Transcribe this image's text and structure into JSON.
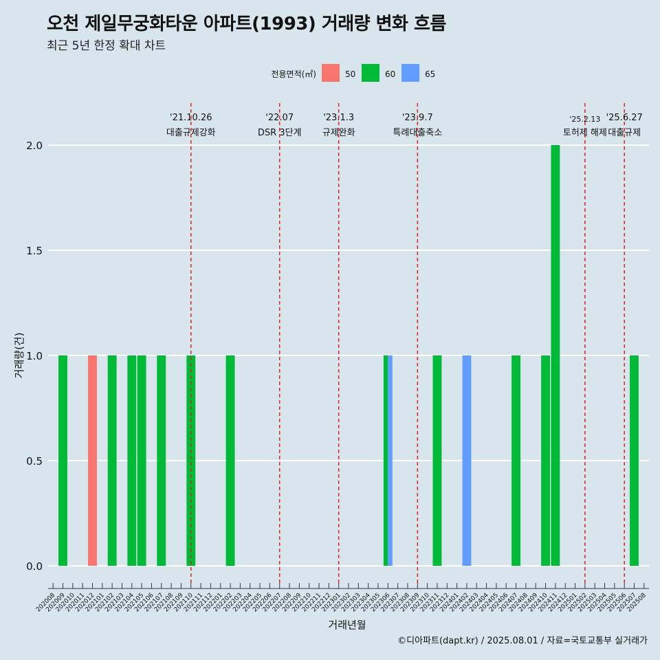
{
  "title": "오천 제일무궁화타운 아파트(1993) 거래량 변화 흐름",
  "subtitle": "최근 5년 한정 확대 차트",
  "caption": "©디아파트(dapt.kr) / 2025.08.01 / 자료=국토교통부 실거래가",
  "chart_data": {
    "type": "bar",
    "title": "오천 제일무궁화타운 아파트(1993) 거래량 변화 흐름",
    "xlabel": "거래년월",
    "ylabel": "거래량(건)",
    "ylim": [
      0,
      2.0
    ],
    "yticks": [
      "0.0",
      "0.5",
      "1.0",
      "1.5",
      "2.0"
    ],
    "legend": {
      "title": "전용면적(㎡)",
      "position": "top",
      "entries": [
        {
          "name": "50",
          "color": "#f8766d"
        },
        {
          "name": "60",
          "color": "#00ba38"
        },
        {
          "name": "65",
          "color": "#619cff"
        }
      ]
    },
    "categories": [
      "202008",
      "202009",
      "202010",
      "202011",
      "202012",
      "202101",
      "202102",
      "202103",
      "202104",
      "202105",
      "202106",
      "202107",
      "202108",
      "202109",
      "202110",
      "202111",
      "202112",
      "202201",
      "202202",
      "202203",
      "202204",
      "202205",
      "202206",
      "202207",
      "202208",
      "202209",
      "202210",
      "202211",
      "202212",
      "202301",
      "202302",
      "202303",
      "202304",
      "202305",
      "202306",
      "202307",
      "202308",
      "202309",
      "202310",
      "202311",
      "202312",
      "202401",
      "202402",
      "202403",
      "202404",
      "202405",
      "202406",
      "202407",
      "202408",
      "202409",
      "202410",
      "202411",
      "202412",
      "202501",
      "202502",
      "202503",
      "202504",
      "202505",
      "202506",
      "202507",
      "202508"
    ],
    "bars": [
      {
        "month": "202009",
        "area": "60",
        "value": 1
      },
      {
        "month": "202012",
        "area": "50",
        "value": 1
      },
      {
        "month": "202102",
        "area": "60",
        "value": 1
      },
      {
        "month": "202104",
        "area": "60",
        "value": 1
      },
      {
        "month": "202105",
        "area": "60",
        "value": 1
      },
      {
        "month": "202107",
        "area": "60",
        "value": 1
      },
      {
        "month": "202110",
        "area": "60",
        "value": 1
      },
      {
        "month": "202202",
        "area": "60",
        "value": 1
      },
      {
        "month": "202306",
        "area": "60",
        "value": 1
      },
      {
        "month": "202306",
        "area": "65",
        "value": 1
      },
      {
        "month": "202311",
        "area": "60",
        "value": 1
      },
      {
        "month": "202402",
        "area": "65",
        "value": 1
      },
      {
        "month": "202407",
        "area": "60",
        "value": 1
      },
      {
        "month": "202410",
        "area": "60",
        "value": 1
      },
      {
        "month": "202411",
        "area": "60",
        "value": 2
      },
      {
        "month": "202507",
        "area": "60",
        "value": 1
      }
    ],
    "events": [
      {
        "month": "202110",
        "date": "'21.10.26",
        "label": "대출규제강화"
      },
      {
        "month": "202207",
        "date": "'22.07",
        "label": "DSR 3단계"
      },
      {
        "month": "202301",
        "date": "'23.1.3",
        "label": "규제완화"
      },
      {
        "month": "202309",
        "date": "'23.9.7",
        "label": "특례대출축소"
      },
      {
        "month": "202502",
        "date": "'25.2.13",
        "label": "토허제 해제"
      },
      {
        "month": "202506",
        "date": "'25.6.27",
        "label": "대출규제"
      }
    ]
  }
}
